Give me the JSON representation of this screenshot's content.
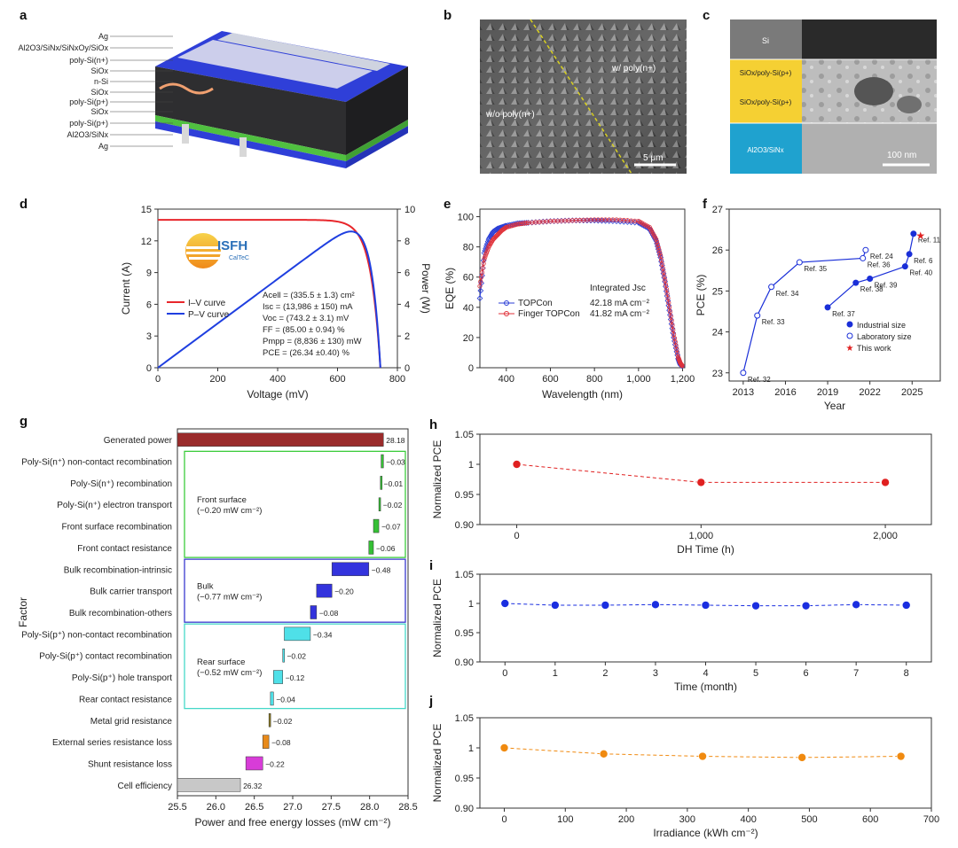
{
  "panel_labels": [
    "a",
    "b",
    "c",
    "d",
    "e",
    "f",
    "g",
    "h",
    "i",
    "j"
  ],
  "panel_a": {
    "layers": [
      "Ag",
      "Al2O3/SiNx/SiNxOy/SiOx",
      "poly-Si(n+)",
      "SiOx",
      "n-Si",
      "SiOx",
      "poly-Si(p+)",
      "SiOx",
      "poly-Si(p+)",
      "Al2O3/SiNx",
      "Ag"
    ]
  },
  "panel_b": {
    "label_left": "w/o poly(n+)",
    "label_right": "w/ poly(n+)",
    "scale": "5 μm"
  },
  "panel_c": {
    "rows": [
      "Si",
      "SiOx/poly-Si(p+)",
      "SiOx/poly-Si(p+)",
      "Al2O3/SiNx"
    ],
    "scale": "100 nm"
  },
  "logo": {
    "name": "ISFH",
    "sub": "CalTeC"
  },
  "chart_data": [
    {
      "panel": "d",
      "type": "line",
      "xlabel": "Voltage (mV)",
      "ylabel": "Current (A)",
      "y2label": "Power (W)",
      "xlim": [
        0,
        800
      ],
      "ylim": [
        0,
        15
      ],
      "y2lim": [
        0,
        10
      ],
      "xticks": [
        0,
        200,
        400,
        600,
        800
      ],
      "yticks": [
        0,
        3,
        6,
        9,
        12,
        15
      ],
      "y2ticks": [
        0,
        2,
        4,
        6,
        8,
        10
      ],
      "legend": [
        "I–V curve",
        "P–V curve"
      ],
      "colors": {
        "iv": "#e8262b",
        "pv": "#1f3fe0"
      },
      "params": {
        "voc_mV": 743.2,
        "isc_A": 13.986,
        "pmax_mW": 8836
      },
      "annotations": [
        "Acell = (335.5 ± 1.3) cm²",
        "Isc = (13,986 ± 150) mA",
        "Voc = (743.2 ± 3.1) mV",
        "FF = (85.00 ± 0.94) %",
        "Pmpp = (8,836 ± 130) mW",
        "PCE = (26.34 ±0.40) %"
      ]
    },
    {
      "panel": "e",
      "type": "line",
      "xlabel": "Wavelength (nm)",
      "ylabel": "EQE (%)",
      "xlim": [
        280,
        1210
      ],
      "ylim": [
        0,
        105
      ],
      "xticks": [
        400,
        600,
        800,
        1000,
        1200
      ],
      "xticklabels": [
        "400",
        "600",
        "800",
        "1,000",
        "1,200"
      ],
      "yticks": [
        0,
        20,
        40,
        60,
        80,
        100
      ],
      "series": [
        {
          "name": "TOPCon",
          "color": "#2b3fd6",
          "jsc": "42.18 mA cm⁻²",
          "x": [
            280,
            300,
            320,
            340,
            360,
            380,
            400,
            450,
            500,
            600,
            700,
            800,
            900,
            1000,
            1050,
            1080,
            1100,
            1120,
            1140,
            1160,
            1180,
            1190,
            1200
          ],
          "y": [
            46,
            76,
            85,
            90,
            92,
            93,
            94,
            95.5,
            96,
            97,
            97.5,
            97.5,
            97,
            96,
            92,
            84,
            73,
            57,
            38,
            20,
            6,
            2,
            1
          ]
        },
        {
          "name": "Finger TOPCon",
          "color": "#e0323a",
          "jsc": "41.82 mA cm⁻²",
          "x": [
            280,
            300,
            320,
            340,
            360,
            380,
            400,
            450,
            500,
            600,
            700,
            800,
            900,
            1000,
            1050,
            1080,
            1100,
            1120,
            1140,
            1160,
            1180,
            1190,
            1200
          ],
          "y": [
            54,
            72,
            80,
            85,
            88,
            91,
            93,
            95,
            96,
            97,
            97.5,
            98,
            98,
            97,
            93,
            85,
            74,
            58,
            40,
            22,
            7,
            3,
            1
          ]
        }
      ],
      "integrated_label": "Integrated Jsc"
    },
    {
      "panel": "f",
      "type": "scatter",
      "xlabel": "Year",
      "ylabel": "PCE (%)",
      "xlim": [
        2012,
        2027
      ],
      "ylim": [
        22.8,
        27
      ],
      "xticks": [
        2013,
        2016,
        2019,
        2022,
        2025
      ],
      "yticks": [
        23,
        24,
        25,
        26,
        27
      ],
      "legend": [
        "Industrial size",
        "Laboratory size",
        "This work"
      ],
      "laboratory": [
        {
          "x": 2013,
          "y": 23.0,
          "ref": "Ref. 32"
        },
        {
          "x": 2014,
          "y": 24.4,
          "ref": "Ref. 33"
        },
        {
          "x": 2015,
          "y": 25.1,
          "ref": "Ref. 34"
        },
        {
          "x": 2017,
          "y": 25.7,
          "ref": "Ref. 35"
        },
        {
          "x": 2021.5,
          "y": 25.8,
          "ref": "Ref. 36"
        },
        {
          "x": 2021.7,
          "y": 26.0,
          "ref": "Ref. 24"
        }
      ],
      "industrial": [
        {
          "x": 2019,
          "y": 24.6,
          "ref": "Ref. 37"
        },
        {
          "x": 2021,
          "y": 25.2,
          "ref": "Ref. 38"
        },
        {
          "x": 2022,
          "y": 25.3,
          "ref": "Ref. 39"
        },
        {
          "x": 2024.5,
          "y": 25.6,
          "ref": "Ref. 40"
        },
        {
          "x": 2024.8,
          "y": 25.9,
          "ref": "Ref. 6"
        },
        {
          "x": 2025.1,
          "y": 26.4,
          "ref": "Ref. 11"
        }
      ],
      "this_work": {
        "x": 2025.6,
        "y": 26.35
      }
    },
    {
      "panel": "g",
      "type": "bar",
      "xlabel": "Power and free energy losses (mW cm⁻²)",
      "ylabel": "Factor",
      "xlim": [
        25.5,
        28.5
      ],
      "xticks": [
        25.5,
        26.0,
        26.5,
        27.0,
        27.5,
        28.0,
        28.5
      ],
      "categories": [
        "Generated power",
        "Poly-Si(n⁺) non-contact recombination",
        "Poly-Si(n⁺) recombination",
        "Poly-Si(n⁺) electron transport",
        "Front surface recombination",
        "Front contact resistance",
        "Bulk recombination-intrinsic",
        "Bulk carrier transport",
        "Bulk recombination-others",
        "Poly-Si(p⁺) non-contact recombination",
        "Poly-Si(p⁺) contact recombination",
        "Poly-Si(p⁺) hole transport",
        "Rear contact resistance",
        "Metal grid resistance",
        "External series resistance loss",
        "Shunt resistance loss",
        "Cell efficiency"
      ],
      "values": [
        28.18,
        -0.03,
        -0.01,
        -0.02,
        -0.07,
        -0.06,
        -0.48,
        -0.2,
        -0.08,
        -0.34,
        -0.02,
        -0.12,
        -0.04,
        -0.02,
        -0.08,
        -0.22,
        26.32
      ],
      "value_labels": [
        "28.18",
        "−0.03",
        "−0.01",
        "−0.02",
        "−0.07",
        "−0.06",
        "−0.48",
        "−0.20",
        "−0.08",
        "−0.34",
        "−0.02",
        "−0.12",
        "−0.04",
        "−0.02",
        "−0.08",
        "−0.22",
        "26.32"
      ],
      "colors": [
        "#9a2b2b",
        "#35c035",
        "#35c035",
        "#35c035",
        "#35c035",
        "#35c035",
        "#3333dd",
        "#3333dd",
        "#3333dd",
        "#4fe0e8",
        "#4fe0e8",
        "#4fe0e8",
        "#4fe0e8",
        "#8a7a20",
        "#e88a1a",
        "#d83cd8",
        "#c8c8c8"
      ],
      "groups": [
        {
          "label": "Front surface",
          "sub": "(−0.20 mW cm⁻²)",
          "color": "#3dcc3d",
          "from": 1,
          "to": 5
        },
        {
          "label": "Bulk",
          "sub": "(−0.77 mW cm⁻²)",
          "color": "#3a3ad0",
          "from": 6,
          "to": 8
        },
        {
          "label": "Rear surface",
          "sub": "(−0.52 mW cm⁻²)",
          "color": "#46d8c8",
          "from": 9,
          "to": 12
        }
      ]
    },
    {
      "panel": "h",
      "type": "line",
      "xlabel": "DH Time (h)",
      "ylabel": "Normalized PCE",
      "xlim": [
        -200,
        2250
      ],
      "ylim": [
        0.9,
        1.05
      ],
      "xticks": [
        0,
        1000,
        2000
      ],
      "xticklabels": [
        "0",
        "1,000",
        "2,000"
      ],
      "yticks": [
        0.9,
        0.95,
        1.0,
        1.05
      ],
      "color": "#e02020",
      "x": [
        0,
        1000,
        2000
      ],
      "y": [
        1.0,
        0.97,
        0.97
      ]
    },
    {
      "panel": "i",
      "type": "line",
      "xlabel": "Time (month)",
      "ylabel": "Normalized PCE",
      "xlim": [
        -0.5,
        8.5
      ],
      "ylim": [
        0.9,
        1.05
      ],
      "xticks": [
        0,
        1,
        2,
        3,
        4,
        5,
        6,
        7,
        8
      ],
      "yticks": [
        0.9,
        0.95,
        1.0,
        1.05
      ],
      "color": "#1a2ee0",
      "x": [
        0,
        1,
        2,
        3,
        4,
        5,
        6,
        7,
        8
      ],
      "y": [
        1.0,
        0.997,
        0.997,
        0.998,
        0.997,
        0.996,
        0.996,
        0.998,
        0.997
      ]
    },
    {
      "panel": "j",
      "type": "line",
      "xlabel": "Irradiance (kWh cm⁻²)",
      "ylabel": "Normalized PCE",
      "xlim": [
        -40,
        700
      ],
      "ylim": [
        0.9,
        1.05
      ],
      "xticks": [
        0,
        100,
        200,
        300,
        400,
        500,
        600,
        700
      ],
      "yticks": [
        0.9,
        0.95,
        1.0,
        1.05
      ],
      "color": "#f08a10",
      "x": [
        0,
        163,
        325,
        488,
        650
      ],
      "y": [
        1.0,
        0.99,
        0.986,
        0.984,
        0.986
      ]
    }
  ]
}
